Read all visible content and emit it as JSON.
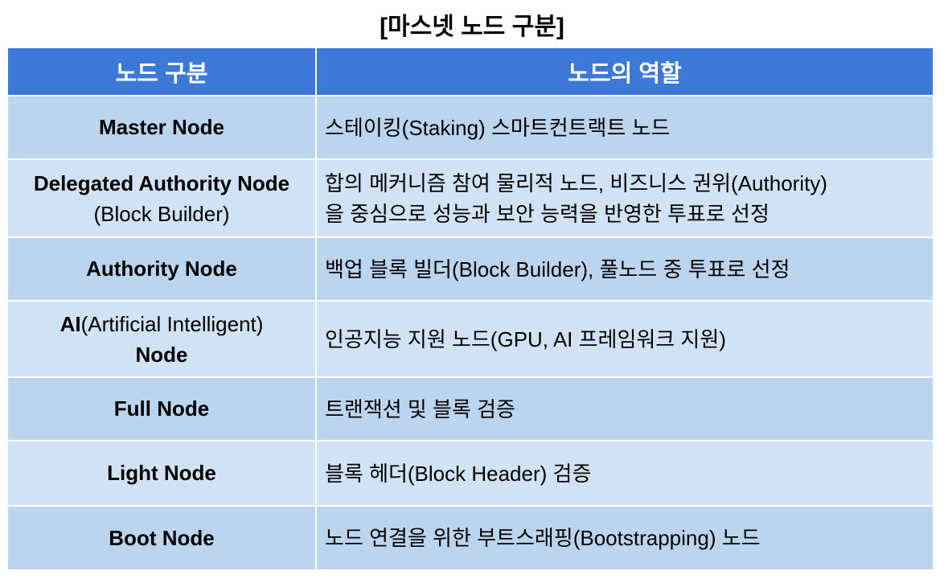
{
  "title": "[마스넷 노드 구분]",
  "colors": {
    "header_bg": "#3c78d8",
    "row_dark": "#bcd5ee",
    "row_light": "#d0e2f3"
  },
  "table": {
    "headers": [
      "노드 구분",
      "노드의 역할"
    ],
    "rows": [
      {
        "name_bold": "Master Node",
        "name_rest": "",
        "role": [
          "스테이킹(Staking) 스마트컨트랙트 노드"
        ]
      },
      {
        "name_bold": "Delegated Authority Node",
        "name_rest": "(Block Builder)",
        "role": [
          "합의 메커니즘 참여 물리적 노드, 비즈니스 권위(Authority)",
          "을 중심으로 성능과 보안 능력을 반영한 투표로 선정"
        ]
      },
      {
        "name_bold": "Authority Node",
        "name_rest": "",
        "role": [
          "백업 블록 빌더(Block Builder), 풀노드 중 투표로 선정"
        ]
      },
      {
        "name_bold": "AI",
        "name_mid": "(Artificial Intelligent)",
        "name_bold2": "Node",
        "role": [
          "인공지능 지원 노드(GPU, AI 프레임워크 지원)"
        ]
      },
      {
        "name_bold": "Full Node",
        "name_rest": "",
        "role": [
          "트랜잭션 및 블록 검증"
        ]
      },
      {
        "name_bold": "Light Node",
        "name_rest": "",
        "role": [
          "블록 헤더(Block Header) 검증"
        ]
      },
      {
        "name_bold": "Boot Node",
        "name_rest": "",
        "role": [
          "노드 연결을 위한 부트스래핑(Bootstrapping) 노드"
        ]
      }
    ]
  }
}
